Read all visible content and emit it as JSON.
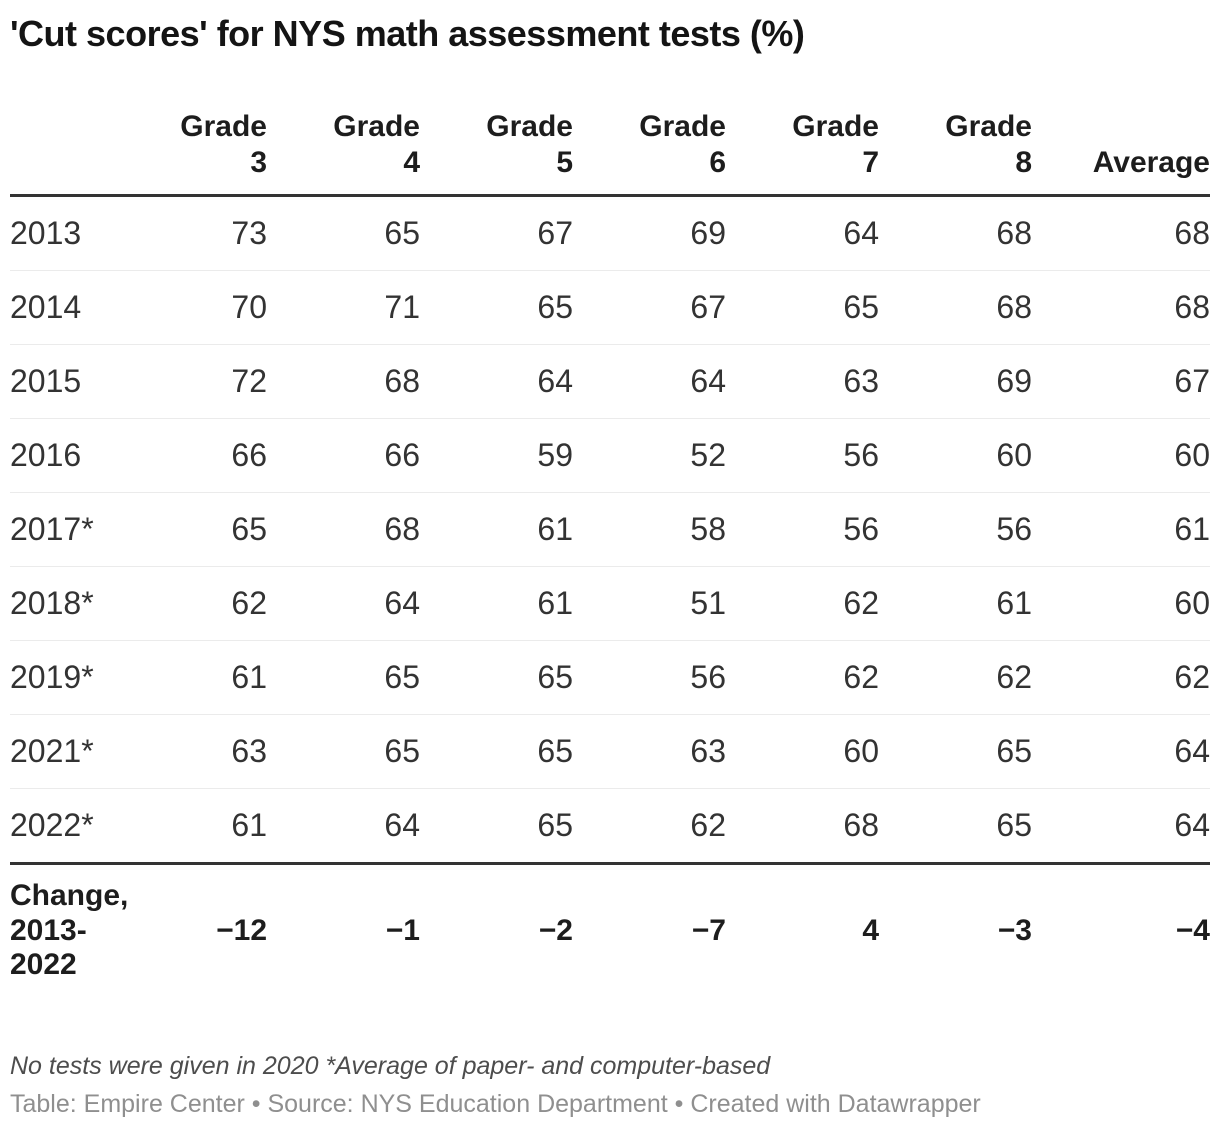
{
  "chart_data": {
    "type": "table",
    "title": "'Cut scores' for NYS math assessment tests (%)",
    "columns": [
      "Grade 3",
      "Grade 4",
      "Grade 5",
      "Grade 6",
      "Grade 7",
      "Grade 8",
      "Average"
    ],
    "header_display": [
      "Grade\n3",
      "Grade\n4",
      "Grade\n5",
      "Grade\n6",
      "Grade\n7",
      "Grade\n8",
      "Average"
    ],
    "rows": [
      {
        "label": "2013",
        "values": [
          73,
          65,
          67,
          69,
          64,
          68,
          68
        ]
      },
      {
        "label": "2014",
        "values": [
          70,
          71,
          65,
          67,
          65,
          68,
          68
        ]
      },
      {
        "label": "2015",
        "values": [
          72,
          68,
          64,
          64,
          63,
          69,
          67
        ]
      },
      {
        "label": "2016",
        "values": [
          66,
          66,
          59,
          52,
          56,
          60,
          60
        ]
      },
      {
        "label": "2017*",
        "values": [
          65,
          68,
          61,
          58,
          56,
          56,
          61
        ]
      },
      {
        "label": "2018*",
        "values": [
          62,
          64,
          61,
          51,
          62,
          61,
          60
        ]
      },
      {
        "label": "2019*",
        "values": [
          61,
          65,
          65,
          56,
          62,
          62,
          62
        ]
      },
      {
        "label": "2021*",
        "values": [
          63,
          65,
          65,
          63,
          60,
          65,
          64
        ]
      },
      {
        "label": "2022*",
        "values": [
          61,
          64,
          65,
          62,
          68,
          65,
          64
        ]
      }
    ],
    "summary_row": {
      "label": "Change, 2013-2022",
      "label_display": "Change,\n2013-\n2022",
      "values": [
        "−12",
        "−1",
        "−2",
        "−7",
        "4",
        "−3",
        "−4"
      ]
    },
    "notes": "No tests were given in 2020 *Average of paper- and computer-based",
    "credit": "Table: Empire Center • Source: NYS Education Department • Created with Datawrapper",
    "layout": {
      "value_align": "right",
      "grid": "horizontal-only",
      "text_color": "#333333",
      "rule_color": "#333333",
      "separator_color": "#ebebeb"
    }
  }
}
